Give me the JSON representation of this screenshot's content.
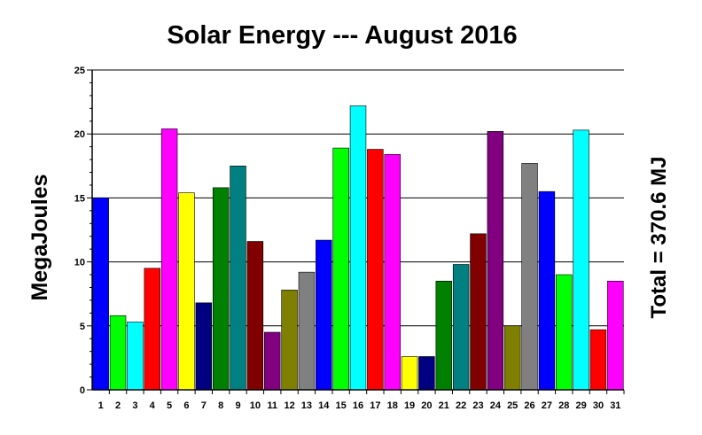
{
  "chart_data": {
    "type": "bar",
    "title": "Solar Energy --- August 2016",
    "ylabel": "MegaJoules",
    "xlabel": "",
    "annotation": "Total = 370.6 MJ",
    "ylim": [
      0,
      25
    ],
    "yticks": [
      "0",
      "5",
      "10",
      "15",
      "20",
      "25"
    ],
    "grid": true,
    "categories": [
      "1",
      "2",
      "3",
      "4",
      "5",
      "6",
      "7",
      "8",
      "9",
      "10",
      "11",
      "12",
      "13",
      "14",
      "15",
      "16",
      "17",
      "18",
      "19",
      "20",
      "21",
      "22",
      "23",
      "24",
      "25",
      "26",
      "27",
      "28",
      "29",
      "30",
      "31"
    ],
    "values": [
      15.0,
      5.8,
      5.3,
      9.5,
      20.4,
      15.4,
      6.8,
      15.8,
      17.5,
      11.6,
      4.5,
      7.8,
      9.2,
      11.7,
      18.9,
      22.2,
      18.8,
      18.4,
      2.6,
      2.6,
      8.5,
      9.8,
      12.2,
      20.2,
      5.0,
      17.7,
      15.5,
      9.0,
      20.3,
      4.7,
      8.5
    ],
    "colors": [
      "#0000ff",
      "#00ff00",
      "#00ffff",
      "#ff0000",
      "#ff00ff",
      "#ffff00",
      "#000080",
      "#008000",
      "#008080",
      "#800000",
      "#800080",
      "#808000",
      "#808080",
      "#0000ff",
      "#00ff00",
      "#00ffff",
      "#ff0000",
      "#ff00ff",
      "#ffff00",
      "#000080",
      "#008000",
      "#008080",
      "#800000",
      "#800080",
      "#808000",
      "#808080",
      "#0000ff",
      "#00ff00",
      "#00ffff",
      "#ff0000",
      "#ff00ff"
    ]
  }
}
